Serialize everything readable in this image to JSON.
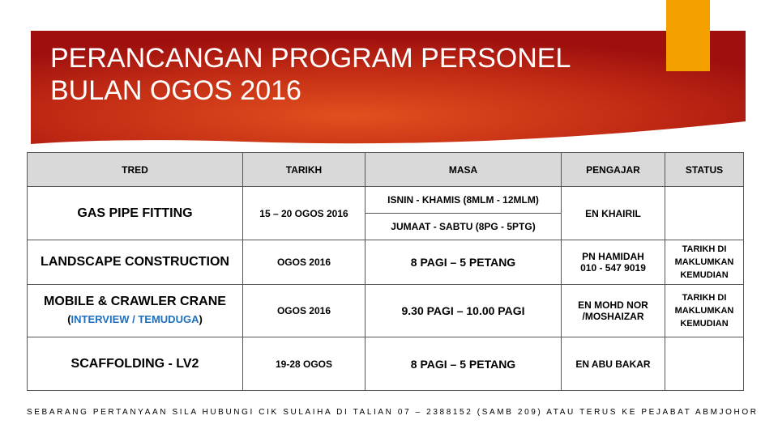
{
  "header": {
    "title": [
      "PERANCANGAN PROGRAM PERSONEL",
      "BULAN OGOS 2016"
    ]
  },
  "table": {
    "headers": [
      "TRED",
      "TARIKH",
      "MASA",
      "PENGAJAR",
      "STATUS"
    ],
    "rows": [
      {
        "tred": "GAS PIPE FITTING",
        "tarikh": "15 – 20 OGOS 2016",
        "masa": [
          "ISNIN - KHAMIS (8MLM - 12MLM)",
          "JUMAAT - SABTU (8PG - 5PTG)"
        ],
        "pengajar": [
          "EN KHAIRIL"
        ]
      },
      {
        "tred": "LANDSCAPE CONSTRUCTION",
        "tarikh": "OGOS 2016",
        "masa": [
          "8 PAGI – 5 PETANG"
        ],
        "pengajar": [
          "PN HAMIDAH",
          "010 - 547 9019"
        ],
        "status": "TARIKH DI MAKLUMKAN KEMUDIAN"
      },
      {
        "tred": "MOBILE & CRAWLER CRANE",
        "note": {
          "open": "(",
          "text": "INTERVIEW / TEMUDUGA",
          "close": ")"
        },
        "tarikh": "OGOS 2016",
        "masa": [
          "9.30 PAGI – 10.00 PAGI"
        ],
        "pengajar": [
          "EN MOHD NOR",
          "/MOSHAIZAR"
        ],
        "status": "TARIKH DI MAKLUMKAN KEMUDIAN"
      },
      {
        "tred": "SCAFFOLDING - LV2",
        "tarikh": "19-28 OGOS",
        "masa": [
          "8 PAGI – 5 PETANG"
        ],
        "pengajar": [
          "EN ABU BAKAR"
        ]
      }
    ]
  },
  "footer": {
    "text": "SEBARANG PERTANYAAN SILA HUBUNGI CIK SULAIHA DI TALIAN 07 – 2388152 (SAMB 209) ATAU TERUS KE PEJABAT ABMJOHOR"
  }
}
